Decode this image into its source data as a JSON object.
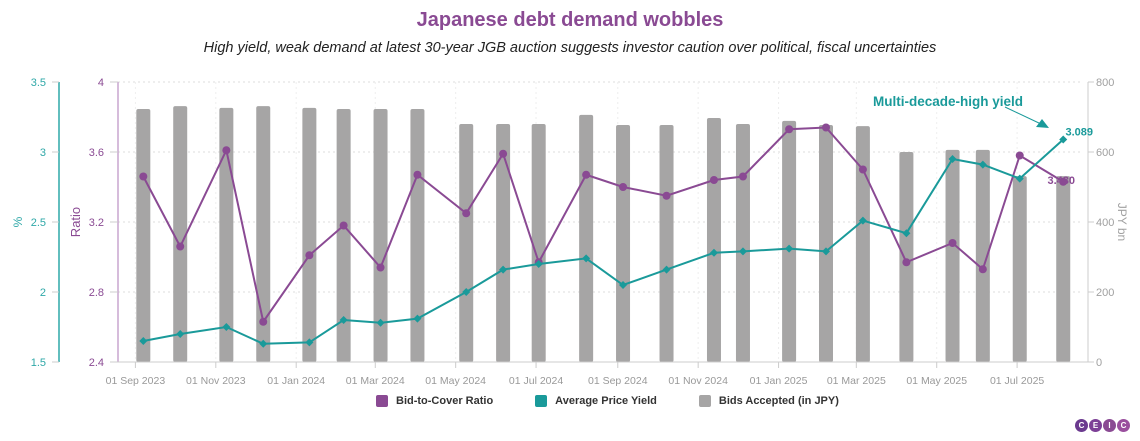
{
  "colors": {
    "ratio": "#8a4a93",
    "yield": "#1a9a9a",
    "bids": "#a6a5a5",
    "axis_pct": "#2fa8a8",
    "axis_ratio": "#8a4a93",
    "axis_jpy": "#a0a0a0",
    "grid": "#dddddd"
  },
  "logo": {
    "letters": [
      "C",
      "E",
      "I",
      "C"
    ]
  },
  "chart_data": {
    "type": "bar+line",
    "title": "Japanese debt demand wobbles",
    "subtitle": "High yield, weak demand at latest 30-year JGB auction suggests investor caution over political, fiscal uncertainties",
    "x_ticks": [
      "01 Sep 2023",
      "01 Nov 2023",
      "01 Jan 2024",
      "01 Mar 2024",
      "01 May 2024",
      "01 Jul 2024",
      "01 Sep 2024",
      "01 Nov 2024",
      "01 Jan 2025",
      "01 Mar 2025",
      "01 May 2025",
      "01 Jul 2025"
    ],
    "x_tick_dates": [
      "2023-09-01",
      "2023-11-01",
      "2024-01-01",
      "2024-03-01",
      "2024-05-01",
      "2024-07-01",
      "2024-09-01",
      "2024-11-01",
      "2025-01-01",
      "2025-03-01",
      "2025-05-01",
      "2025-07-01"
    ],
    "x_range": [
      "2023-08-15",
      "2025-08-20"
    ],
    "dates": [
      "2023-09-07",
      "2023-10-05",
      "2023-11-09",
      "2023-12-07",
      "2024-01-11",
      "2024-02-06",
      "2024-03-05",
      "2024-04-02",
      "2024-05-09",
      "2024-06-06",
      "2024-07-03",
      "2024-08-08",
      "2024-09-05",
      "2024-10-08",
      "2024-11-13",
      "2024-12-05",
      "2025-01-09",
      "2025-02-06",
      "2025-03-06",
      "2025-04-08",
      "2025-05-13",
      "2025-06-05",
      "2025-07-03",
      "2025-08-05"
    ],
    "axes": {
      "pct": {
        "label": "%",
        "range": [
          1.5,
          3.5
        ],
        "ticks": [
          "1.5",
          "2",
          "2.5",
          "3",
          "3.5"
        ],
        "position": "far-left"
      },
      "ratio": {
        "label": "Ratio",
        "range": [
          2.4,
          4.0
        ],
        "ticks": [
          "2.4",
          "2.8",
          "3.2",
          "3.6",
          "4"
        ],
        "position": "left"
      },
      "jpy": {
        "label": "JPY bn",
        "range": [
          0,
          800
        ],
        "ticks": [
          "0",
          "200",
          "400",
          "600",
          "800"
        ],
        "position": "right"
      }
    },
    "grid": true,
    "series": [
      {
        "name": "Bid-to-Cover Ratio",
        "type": "line",
        "axis": "ratio",
        "values": [
          3.46,
          3.06,
          3.61,
          2.63,
          3.01,
          3.18,
          2.94,
          3.47,
          3.25,
          3.59,
          2.97,
          3.47,
          3.4,
          3.35,
          3.44,
          3.46,
          3.73,
          3.74,
          3.5,
          2.97,
          3.08,
          2.93,
          3.58,
          3.43
        ]
      },
      {
        "name": "Average Price Yield",
        "type": "line",
        "axis": "pct",
        "values": [
          1.65,
          1.7,
          1.75,
          1.63,
          1.64,
          1.8,
          1.78,
          1.81,
          2.0,
          2.16,
          2.2,
          2.24,
          2.05,
          2.16,
          2.28,
          2.29,
          2.31,
          2.29,
          2.51,
          2.42,
          2.95,
          2.91,
          2.81,
          3.089
        ]
      },
      {
        "name": "Bids Accepted (in JPY)",
        "type": "bar",
        "axis": "jpy",
        "values": [
          723,
          731,
          726,
          731,
          726,
          723,
          723,
          723,
          680,
          680,
          680,
          706,
          677,
          677,
          697,
          680,
          689,
          677,
          674,
          600,
          606,
          606,
          531,
          531
        ]
      }
    ],
    "data_labels": [
      {
        "series": "Average Price Yield",
        "index": 23,
        "text": "3.089"
      },
      {
        "series": "Bid-to-Cover Ratio",
        "index": 23,
        "text": "3.430"
      }
    ],
    "annotations": [
      {
        "text": "Multi-decade-high yield",
        "points_to": {
          "series": "Average Price Yield",
          "index": 23
        }
      }
    ],
    "legend": {
      "position": "bottom-center",
      "entries": [
        "Bid-to-Cover Ratio",
        "Average Price Yield",
        "Bids Accepted (in JPY)"
      ]
    }
  }
}
